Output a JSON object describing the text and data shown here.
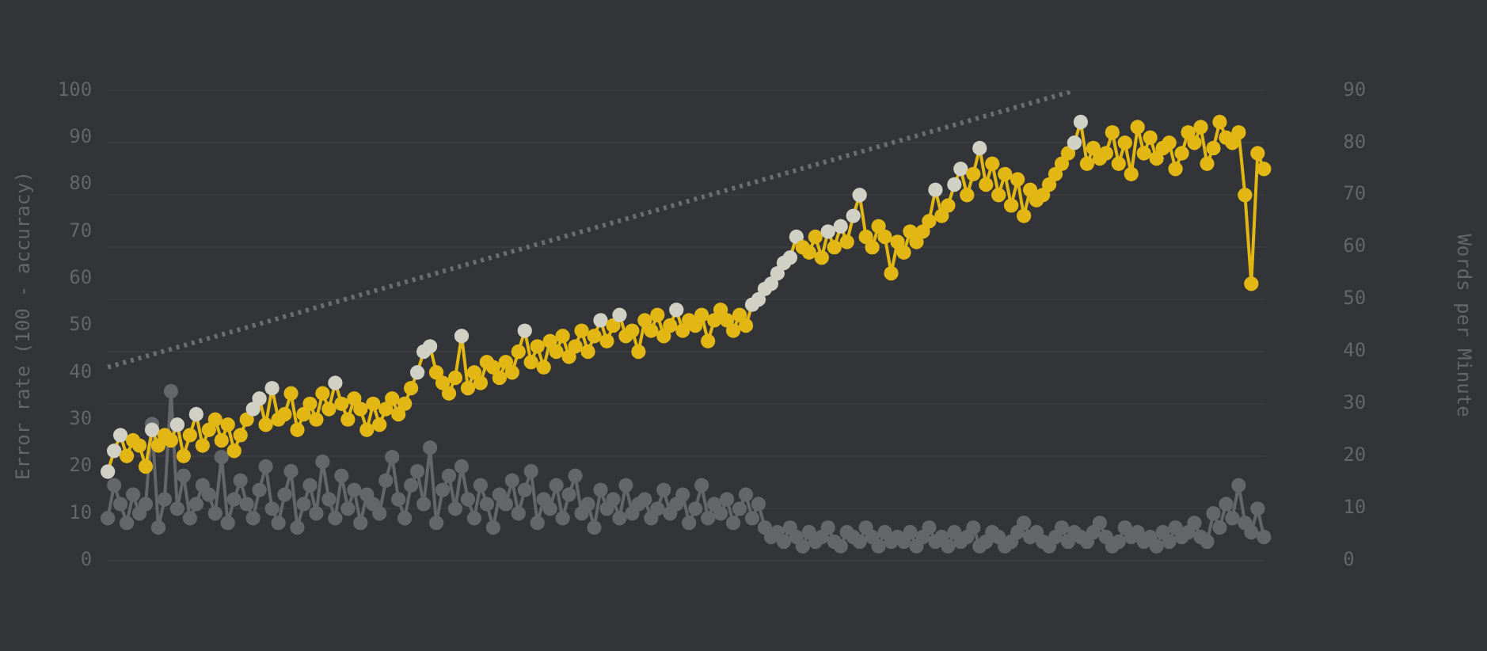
{
  "chart_data": {
    "type": "line",
    "ylabel": "Error rate (100 - accuracy)",
    "y2label": "Words per Minute",
    "categories": [
      null,
      null,
      null,
      null,
      null,
      null,
      null,
      null,
      null,
      null,
      null,
      null,
      null,
      null,
      null,
      null,
      null,
      null,
      null,
      null,
      null,
      null,
      null,
      null,
      null,
      null,
      null,
      null,
      null,
      null,
      null,
      null,
      null,
      null,
      null,
      null,
      null,
      null,
      null,
      null,
      null,
      null,
      null,
      null,
      null,
      null,
      null,
      null,
      null,
      null,
      null,
      null,
      null,
      null,
      null,
      null,
      null,
      null,
      null,
      null,
      null,
      null,
      null,
      null,
      null,
      null,
      null,
      null,
      null,
      null,
      null,
      null,
      null,
      null,
      null,
      null,
      null,
      null,
      null,
      null,
      null,
      null,
      null,
      null,
      null,
      null,
      null,
      null,
      null,
      null,
      null,
      null,
      null,
      null,
      null,
      null,
      null,
      null,
      null,
      null,
      null,
      null,
      null,
      null,
      null,
      null,
      null,
      null,
      null,
      null,
      null,
      null,
      null,
      null,
      null,
      null,
      null,
      null,
      null,
      null,
      null,
      null,
      null,
      null,
      null,
      null,
      null,
      null,
      null,
      null,
      null,
      null,
      null,
      null,
      null,
      null,
      null,
      null,
      null,
      null,
      null,
      null,
      null,
      null,
      null,
      null,
      null,
      null,
      null,
      null,
      null,
      null,
      null,
      null,
      null,
      null,
      null,
      null,
      null,
      null,
      null,
      null,
      null,
      null,
      null,
      null,
      null,
      null,
      null,
      null,
      null,
      null,
      null,
      null,
      null,
      null,
      null,
      null,
      null,
      null,
      null,
      null,
      null,
      null
    ],
    "series": [
      {
        "axis": "y2",
        "color": "#6b6d70",
        "line_style": "dotted",
        "marker": "none",
        "values": [
          37,
          null,
          null,
          null,
          null,
          null,
          null,
          null,
          null,
          null,
          null,
          null,
          null,
          null,
          null,
          null,
          null,
          null,
          null,
          null,
          null,
          null,
          null,
          null,
          null,
          null,
          null,
          null,
          null,
          null,
          null,
          null,
          null,
          null,
          null,
          null,
          null,
          null,
          null,
          null,
          null,
          null,
          null,
          null,
          null,
          null,
          null,
          null,
          null,
          null,
          null,
          null,
          null,
          null,
          null,
          null,
          null,
          null,
          null,
          null,
          null,
          null,
          null,
          null,
          null,
          null,
          null,
          null,
          null,
          null,
          null,
          null,
          null,
          null,
          null,
          null,
          null,
          null,
          null,
          null,
          null,
          null,
          null,
          null,
          null,
          null,
          null,
          null,
          null,
          null,
          null,
          null,
          null,
          null,
          null,
          null,
          null,
          null,
          null,
          null,
          null,
          null,
          null,
          null,
          null,
          null,
          null,
          null,
          null,
          null,
          null,
          null,
          null,
          null,
          null,
          null,
          null,
          null,
          null,
          null,
          null,
          null,
          null,
          null,
          null,
          null,
          null,
          null,
          null,
          null,
          null,
          null,
          null,
          null,
          null,
          null,
          null,
          null,
          null,
          null,
          null,
          null,
          null,
          null,
          null,
          null,
          null,
          null,
          null,
          null,
          null,
          null,
          null,
          90,
          null,
          null,
          null,
          null,
          null,
          null,
          null,
          null,
          null,
          null,
          null,
          null,
          null,
          null,
          null,
          null,
          null,
          null,
          null,
          null,
          null,
          null,
          null,
          null,
          null,
          null,
          null,
          null,
          null,
          null
        ]
      },
      {
        "axis": "y",
        "color": "#646669",
        "values": [
          9,
          16,
          12,
          8,
          14,
          10,
          12,
          29,
          7,
          13,
          36,
          11,
          18,
          9,
          12,
          16,
          14,
          10,
          22,
          8,
          13,
          17,
          12,
          9,
          15,
          20,
          11,
          8,
          14,
          19,
          7,
          12,
          16,
          10,
          21,
          13,
          9,
          18,
          11,
          15,
          8,
          14,
          12,
          10,
          17,
          22,
          13,
          9,
          16,
          19,
          12,
          24,
          8,
          15,
          18,
          11,
          20,
          13,
          9,
          16,
          12,
          7,
          14,
          12,
          17,
          10,
          15,
          19,
          8,
          13,
          11,
          16,
          9,
          14,
          18,
          10,
          12,
          7,
          15,
          11,
          13,
          9,
          16,
          10,
          12,
          13,
          9,
          11,
          15,
          10,
          12,
          14,
          8,
          11,
          16,
          9,
          12,
          10,
          13,
          8,
          11,
          14,
          9,
          12,
          7,
          5,
          6,
          4,
          7,
          5,
          3,
          6,
          4,
          5,
          7,
          4,
          3,
          6,
          5,
          4,
          7,
          5,
          3,
          6,
          4,
          5,
          4,
          6,
          3,
          5,
          7,
          4,
          5,
          3,
          6,
          4,
          5,
          7,
          3,
          4,
          6,
          5,
          3,
          4,
          6,
          8,
          5,
          6,
          4,
          3,
          5,
          7,
          4,
          6,
          5,
          4,
          6,
          8,
          5,
          3,
          4,
          7,
          5,
          6,
          4,
          5,
          3,
          6,
          4,
          7,
          5,
          6,
          8,
          5,
          4,
          10,
          7,
          12,
          9,
          16,
          8,
          6,
          11,
          5
        ]
      },
      {
        "axis": "y2",
        "color": "#e2b714",
        "values": [
          17,
          21,
          24,
          20,
          23,
          22,
          18,
          25,
          22,
          24,
          23,
          26,
          20,
          24,
          28,
          22,
          25,
          27,
          23,
          26,
          21,
          24,
          27,
          29,
          31,
          26,
          33,
          27,
          28,
          32,
          25,
          28,
          30,
          27,
          32,
          29,
          34,
          30,
          27,
          31,
          29,
          25,
          30,
          26,
          29,
          31,
          28,
          30,
          33,
          36,
          40,
          41,
          36,
          34,
          32,
          35,
          43,
          33,
          36,
          34,
          38,
          37,
          35,
          38,
          36,
          40,
          44,
          38,
          41,
          37,
          42,
          40,
          43,
          39,
          41,
          44,
          40,
          43,
          46,
          42,
          45,
          47,
          43,
          44,
          40,
          46,
          44,
          47,
          43,
          45,
          48,
          44,
          46,
          45,
          47,
          42,
          46,
          48,
          46,
          44,
          47,
          45,
          49,
          50,
          52,
          53,
          55,
          57,
          58,
          62,
          60,
          59,
          62,
          58,
          63,
          60,
          64,
          61,
          66,
          70,
          62,
          60,
          64,
          62,
          55,
          61,
          59,
          63,
          61,
          63,
          65,
          71,
          66,
          68,
          72,
          75,
          70,
          74,
          79,
          72,
          76,
          70,
          74,
          68,
          73,
          66,
          71,
          69,
          70,
          72,
          74,
          76,
          78,
          80,
          84,
          76,
          79,
          77,
          78,
          82,
          76,
          80,
          74,
          83,
          78,
          81,
          77,
          79,
          80,
          75,
          78,
          82,
          80,
          83,
          76,
          79,
          84,
          81,
          80,
          82,
          70,
          53,
          78,
          75
        ],
        "colors": [
          "#d1d0c5",
          "#d1d0c5",
          "#d1d0c5",
          "#e2b714",
          "#e2b714",
          "#e2b714",
          "#e2b714",
          "#d1d0c5",
          "#e2b714",
          "#e2b714",
          "#e2b714",
          "#d1d0c5",
          "#e2b714",
          "#e2b714",
          "#d1d0c5",
          "#e2b714",
          "#e2b714",
          "#e2b714",
          "#e2b714",
          "#e2b714",
          "#e2b714",
          "#e2b714",
          "#e2b714",
          "#d1d0c5",
          "#d1d0c5",
          "#e2b714",
          "#d1d0c5",
          "#e2b714",
          "#e2b714",
          "#e2b714",
          "#e2b714",
          "#e2b714",
          "#e2b714",
          "#e2b714",
          "#e2b714",
          "#e2b714",
          "#d1d0c5",
          "#e2b714",
          "#e2b714",
          "#e2b714",
          "#e2b714",
          "#e2b714",
          "#e2b714",
          "#e2b714",
          "#e2b714",
          "#e2b714",
          "#e2b714",
          "#e2b714",
          "#e2b714",
          "#d1d0c5",
          "#d1d0c5",
          "#d1d0c5",
          "#e2b714",
          "#e2b714",
          "#e2b714",
          "#e2b714",
          "#d1d0c5",
          "#e2b714",
          "#e2b714",
          "#e2b714",
          "#e2b714",
          "#e2b714",
          "#e2b714",
          "#e2b714",
          "#e2b714",
          "#e2b714",
          "#d1d0c5",
          "#e2b714",
          "#e2b714",
          "#e2b714",
          "#e2b714",
          "#e2b714",
          "#e2b714",
          "#e2b714",
          "#e2b714",
          "#e2b714",
          "#e2b714",
          "#e2b714",
          "#d1d0c5",
          "#e2b714",
          "#e2b714",
          "#d1d0c5",
          "#e2b714",
          "#e2b714",
          "#e2b714",
          "#e2b714",
          "#e2b714",
          "#e2b714",
          "#e2b714",
          "#e2b714",
          "#d1d0c5",
          "#e2b714",
          "#e2b714",
          "#e2b714",
          "#e2b714",
          "#e2b714",
          "#e2b714",
          "#e2b714",
          "#e2b714",
          "#e2b714",
          "#e2b714",
          "#e2b714",
          "#d1d0c5",
          "#d1d0c5",
          "#d1d0c5",
          "#d1d0c5",
          "#d1d0c5",
          "#d1d0c5",
          "#d1d0c5",
          "#d1d0c5",
          "#e2b714",
          "#e2b714",
          "#e2b714",
          "#e2b714",
          "#d1d0c5",
          "#e2b714",
          "#d1d0c5",
          "#e2b714",
          "#d1d0c5",
          "#d1d0c5",
          "#e2b714",
          "#e2b714",
          "#e2b714",
          "#e2b714",
          "#e2b714",
          "#e2b714",
          "#e2b714",
          "#e2b714",
          "#e2b714",
          "#e2b714",
          "#e2b714",
          "#d1d0c5",
          "#e2b714",
          "#e2b714",
          "#d1d0c5",
          "#d1d0c5",
          "#e2b714",
          "#e2b714",
          "#d1d0c5",
          "#e2b714",
          "#e2b714",
          "#e2b714",
          "#e2b714",
          "#e2b714",
          "#e2b714",
          "#e2b714",
          "#e2b714",
          "#e2b714",
          "#e2b714",
          "#e2b714",
          "#e2b714",
          "#e2b714",
          "#e2b714",
          "#d1d0c5",
          "#d1d0c5",
          "#e2b714",
          "#e2b714",
          "#e2b714",
          "#e2b714",
          "#e2b714",
          "#e2b714",
          "#e2b714",
          "#e2b714",
          "#e2b714",
          "#e2b714",
          "#e2b714",
          "#e2b714",
          "#e2b714",
          "#e2b714",
          "#e2b714",
          "#e2b714",
          "#e2b714",
          "#e2b714",
          "#e2b714",
          "#e2b714",
          "#e2b714",
          "#e2b714",
          "#e2b714",
          "#e2b714",
          "#e2b714",
          "#e2b714",
          "#e2b714",
          "#e2b714",
          "#e2b714"
        ]
      }
    ],
    "ylim": [
      0,
      100
    ],
    "yticks": [
      0,
      10,
      20,
      30,
      40,
      50,
      60,
      70,
      80,
      90,
      100
    ],
    "y2lim": [
      0,
      90
    ],
    "y2ticks": [
      0,
      10,
      20,
      30,
      40,
      50,
      60,
      70,
      80,
      90
    ],
    "grid": true,
    "legend": false,
    "tick_labels": "y",
    "marker": "circle",
    "line_style": "solid"
  }
}
